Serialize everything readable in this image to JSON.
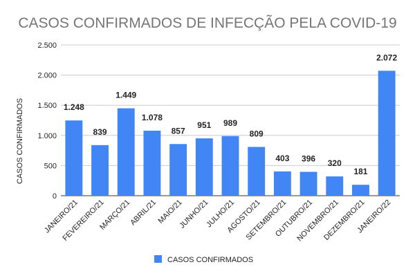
{
  "chart_data": {
    "type": "bar",
    "title": "CASOS CONFIRMADOS DE INFECÇÃO PELA COVID-19",
    "xlabel": "",
    "ylabel": "CASOS CONFIRMADOS",
    "ylim": [
      0,
      2500
    ],
    "yticks": [
      0,
      500,
      1000,
      1500,
      2000,
      2500
    ],
    "ytick_labels": [
      "0",
      "500",
      "1.000",
      "1.500",
      "2.000",
      "2.500"
    ],
    "grid": true,
    "legend_position": "bottom",
    "color": "#4285F4",
    "categories": [
      "JANEIRO/21",
      "FEVEREIRO/21",
      "MARÇO/21",
      "ABRIL/21",
      "MAIO/21",
      "JUNHO/21",
      "JULHO/21",
      "AGOSTO/21",
      "SETEMBRO/21",
      "OUTUBRO/21",
      "NOVEMBRO/21",
      "DEZEMBRO/21",
      "JANEIRO/22"
    ],
    "series": [
      {
        "name": "CASOS CONFIRMADOS",
        "values": [
          1248,
          839,
          1449,
          1078,
          857,
          951,
          989,
          809,
          403,
          396,
          320,
          181,
          2072
        ],
        "value_labels": [
          "1.248",
          "839",
          "1.449",
          "1.078",
          "857",
          "951",
          "989",
          "809",
          "403",
          "396",
          "320",
          "181",
          "2.072"
        ]
      }
    ]
  }
}
